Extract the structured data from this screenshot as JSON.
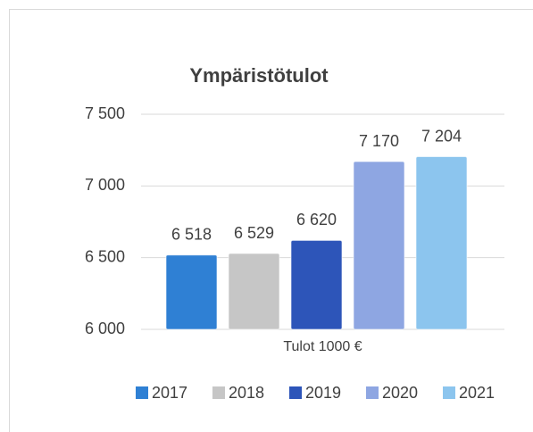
{
  "chart_data": {
    "type": "bar",
    "title": "Ympäristötulot",
    "categories": [
      "Tulot 1000 €"
    ],
    "series": [
      {
        "name": "2017",
        "color": "#2f80d4",
        "values": [
          6518
        ],
        "value_labels": [
          "6 518"
        ]
      },
      {
        "name": "2018",
        "color": "#c6c6c6",
        "values": [
          6529
        ],
        "value_labels": [
          "6 529"
        ]
      },
      {
        "name": "2019",
        "color": "#2d55b9",
        "values": [
          6620
        ],
        "value_labels": [
          "6 620"
        ]
      },
      {
        "name": "2020",
        "color": "#8ea6e2",
        "values": [
          7170
        ],
        "value_labels": [
          "7 170"
        ]
      },
      {
        "name": "2021",
        "color": "#8cc5ee",
        "values": [
          7204
        ],
        "value_labels": [
          "7 204"
        ]
      }
    ],
    "ylim": [
      6000,
      7500
    ],
    "yticks": [
      {
        "value": 6000,
        "label": "6 000"
      },
      {
        "value": 6500,
        "label": "6 500"
      },
      {
        "value": 7000,
        "label": "7 000"
      },
      {
        "value": 7500,
        "label": "7 500"
      }
    ],
    "grid": true,
    "legend": "bottom"
  }
}
